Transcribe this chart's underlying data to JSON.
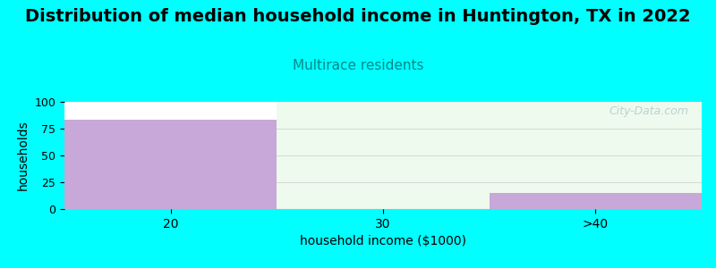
{
  "title": "Distribution of median household income in Huntington, TX in 2022",
  "subtitle": "Multirace residents",
  "xlabel": "household income ($1000)",
  "ylabel": "households",
  "categories": [
    "20",
    "30",
    ">40"
  ],
  "values": [
    83,
    0,
    15
  ],
  "bar_color": "#c8a8d8",
  "bar_color_alpha": 1.0,
  "bg_color": "#00ffff",
  "plot_bg_color": "#ffffff",
  "col_green_bg": "#edfaed",
  "subtitle_color": "#008888",
  "yticks": [
    0,
    25,
    50,
    75,
    100
  ],
  "ylim": [
    0,
    100
  ],
  "title_fontsize": 14,
  "subtitle_fontsize": 11,
  "axis_label_fontsize": 10,
  "watermark": "City-Data.com"
}
